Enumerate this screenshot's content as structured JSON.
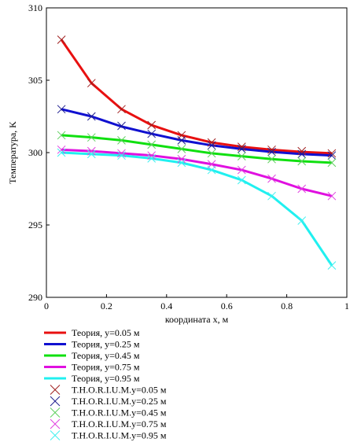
{
  "chart_data": {
    "type": "line",
    "xlabel": "координата x, м",
    "ylabel": "Температура, K",
    "xlim": [
      0,
      1
    ],
    "ylim": [
      290,
      310
    ],
    "x_ticks": [
      "0",
      "0.2",
      "0.4",
      "0.6",
      "0.8",
      "1"
    ],
    "x_tick_values": [
      0,
      0.2,
      0.4,
      0.6,
      0.8,
      1
    ],
    "y_ticks": [
      "290",
      "295",
      "300",
      "305",
      "310"
    ],
    "y_tick_values": [
      290,
      295,
      300,
      305,
      310
    ],
    "grid": false,
    "legend_position": "bottom",
    "x": [
      0.05,
      0.15,
      0.25,
      0.35,
      0.45,
      0.55,
      0.65,
      0.75,
      0.85,
      0.95
    ],
    "series": [
      {
        "name": "Теория, y=0.05 м",
        "kind": "line",
        "color": "#e81010",
        "values": [
          307.8,
          304.8,
          303.0,
          301.9,
          301.2,
          300.7,
          300.4,
          300.2,
          300.05,
          299.95
        ]
      },
      {
        "name": "Теория, y=0.25 м",
        "kind": "line",
        "color": "#1010d0",
        "values": [
          303.0,
          302.5,
          301.8,
          301.3,
          300.85,
          300.5,
          300.25,
          300.05,
          299.9,
          299.8
        ]
      },
      {
        "name": "Теория, y=0.45 м",
        "kind": "line",
        "color": "#10e010",
        "values": [
          301.2,
          301.05,
          300.85,
          300.55,
          300.25,
          299.95,
          299.75,
          299.55,
          299.4,
          299.3
        ]
      },
      {
        "name": "Теория, y=0.75 м",
        "kind": "line",
        "color": "#e010e0",
        "values": [
          300.2,
          300.1,
          299.95,
          299.8,
          299.55,
          299.2,
          298.8,
          298.2,
          297.5,
          297.0
        ]
      },
      {
        "name": "Теория, y=0.95 м",
        "kind": "line",
        "color": "#20f0f0",
        "values": [
          300.0,
          299.9,
          299.8,
          299.6,
          299.3,
          298.8,
          298.1,
          297.0,
          295.3,
          292.2
        ]
      },
      {
        "name": "T.H.O.R.I.U.M.y=0.05 м",
        "kind": "markers",
        "color": "#a02020",
        "values": [
          307.8,
          304.8,
          303.0,
          301.9,
          301.2,
          300.7,
          300.4,
          300.2,
          300.1,
          299.95
        ]
      },
      {
        "name": "T.H.O.R.I.U.M.y=0.25 м",
        "kind": "markers",
        "color": "#202090",
        "values": [
          303.0,
          302.5,
          301.85,
          301.3,
          300.85,
          300.5,
          300.25,
          300.05,
          299.9,
          299.8
        ]
      },
      {
        "name": "T.H.O.R.I.U.M.y=0.45 м",
        "kind": "markers",
        "color": "#60d060",
        "values": [
          301.2,
          301.05,
          300.85,
          300.55,
          300.25,
          299.95,
          299.75,
          299.55,
          299.4,
          299.3
        ]
      },
      {
        "name": "T.H.O.R.I.U.M.y=0.75 м",
        "kind": "markers",
        "color": "#e040e0",
        "values": [
          300.2,
          300.1,
          299.95,
          299.8,
          299.55,
          299.2,
          298.8,
          298.2,
          297.5,
          297.0
        ]
      },
      {
        "name": "T.H.O.R.I.U.M.y=0.95 м",
        "kind": "markers",
        "color": "#40f0f0",
        "values": [
          300.0,
          299.9,
          299.8,
          299.6,
          299.3,
          298.8,
          298.1,
          297.0,
          295.3,
          292.2
        ]
      }
    ]
  }
}
